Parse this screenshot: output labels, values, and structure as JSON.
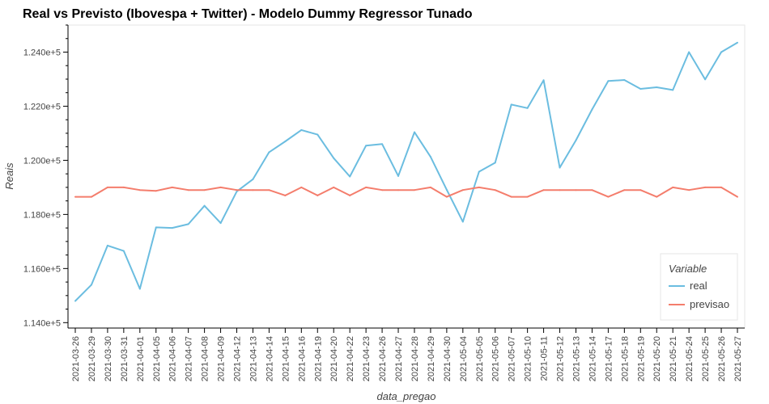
{
  "chart_data": {
    "type": "line",
    "title": "Real vs Previsto (Ibovespa + Twitter) - Modelo Dummy Regressor Tunado",
    "xlabel": "data_pregao",
    "ylabel": "Reais",
    "ylim": [
      113800,
      125000
    ],
    "y_ticks": [
      "1.140e+5",
      "1.160e+5",
      "1.180e+5",
      "1.200e+5",
      "1.220e+5",
      "1.240e+5"
    ],
    "y_tick_values": [
      114000,
      116000,
      118000,
      120000,
      122000,
      124000
    ],
    "legend": {
      "title": "Variable",
      "position": "bottom-right"
    },
    "grid": false,
    "categories": [
      "2021-03-26",
      "2021-03-29",
      "2021-03-30",
      "2021-03-31",
      "2021-04-01",
      "2021-04-05",
      "2021-04-06",
      "2021-04-07",
      "2021-04-08",
      "2021-04-09",
      "2021-04-12",
      "2021-04-13",
      "2021-04-14",
      "2021-04-15",
      "2021-04-16",
      "2021-04-19",
      "2021-04-20",
      "2021-04-22",
      "2021-04-23",
      "2021-04-26",
      "2021-04-27",
      "2021-04-28",
      "2021-04-29",
      "2021-04-30",
      "2021-05-04",
      "2021-05-05",
      "2021-05-06",
      "2021-05-07",
      "2021-05-10",
      "2021-05-11",
      "2021-05-12",
      "2021-05-13",
      "2021-05-14",
      "2021-05-17",
      "2021-05-18",
      "2021-05-19",
      "2021-05-20",
      "2021-05-21",
      "2021-05-24",
      "2021-05-25",
      "2021-05-26",
      "2021-05-27"
    ],
    "series": [
      {
        "name": "real",
        "color": "#6bbde0",
        "values": [
          114800,
          115400,
          116850,
          116650,
          115250,
          117520,
          117500,
          117640,
          118320,
          117680,
          118850,
          119300,
          120300,
          120700,
          121120,
          120950,
          120080,
          119400,
          120540,
          120600,
          119420,
          121040,
          120130,
          118910,
          117730,
          119580,
          119910,
          122060,
          121930,
          122960,
          119730,
          120740,
          121880,
          122930,
          122970,
          122640,
          122700,
          122600,
          124000,
          122990,
          124000,
          124350
        ]
      },
      {
        "name": "previsao",
        "color": "#f47d6c",
        "values": [
          118650,
          118650,
          119000,
          119000,
          118900,
          118870,
          119000,
          118900,
          118900,
          119000,
          118900,
          118900,
          118900,
          118700,
          119000,
          118700,
          119000,
          118700,
          119000,
          118900,
          118900,
          118900,
          119000,
          118650,
          118900,
          119000,
          118900,
          118650,
          118650,
          118900,
          118900,
          118900,
          118900,
          118650,
          118900,
          118900,
          118650,
          119000,
          118900,
          119000,
          119000,
          118650
        ]
      }
    ]
  }
}
